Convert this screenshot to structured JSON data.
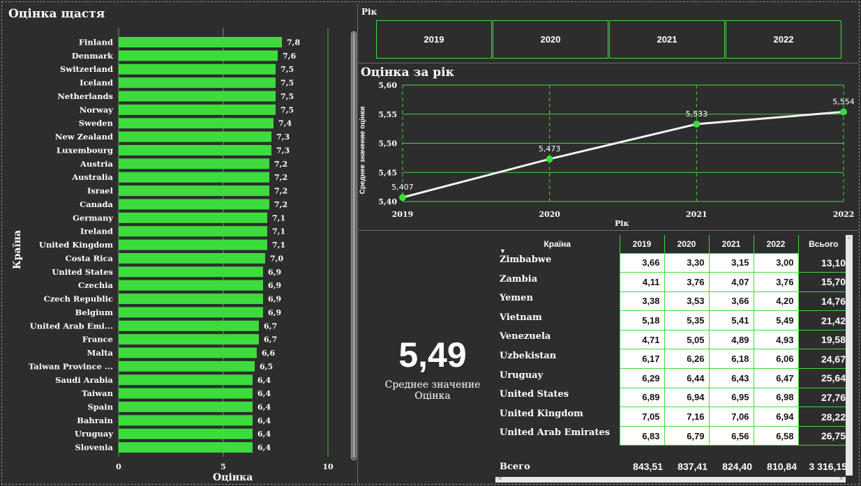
{
  "left_panel": {
    "title": "Оцінка щастя",
    "y_axis_label": "Країна",
    "x_axis_label": "Оцінка"
  },
  "slicer": {
    "title": "Рік",
    "years": [
      "2019",
      "2020",
      "2021",
      "2022"
    ]
  },
  "line_panel": {
    "title": "Оцінка за рік"
  },
  "kpi": {
    "value": "5,49",
    "label_line1": "Среднее значение",
    "label_line2": "Оцінка"
  },
  "table": {
    "headers": [
      "Країна",
      "2019",
      "2020",
      "2021",
      "2022",
      "Всього"
    ],
    "rows": [
      {
        "country": "Zimbabwe",
        "y2019": "3,66",
        "y2020": "3,30",
        "y2021": "3,15",
        "y2022": "3,00",
        "total": "13,10"
      },
      {
        "country": "Zambia",
        "y2019": "4,11",
        "y2020": "3,76",
        "y2021": "4,07",
        "y2022": "3,76",
        "total": "15,70"
      },
      {
        "country": "Yemen",
        "y2019": "3,38",
        "y2020": "3,53",
        "y2021": "3,66",
        "y2022": "4,20",
        "total": "14,76"
      },
      {
        "country": "Vietnam",
        "y2019": "5,18",
        "y2020": "5,35",
        "y2021": "5,41",
        "y2022": "5,49",
        "total": "21,42"
      },
      {
        "country": "Venezuela",
        "y2019": "4,71",
        "y2020": "5,05",
        "y2021": "4,89",
        "y2022": "4,93",
        "total": "19,58"
      },
      {
        "country": "Uzbekistan",
        "y2019": "6,17",
        "y2020": "6,26",
        "y2021": "6,18",
        "y2022": "6,06",
        "total": "24,67"
      },
      {
        "country": "Uruguay",
        "y2019": "6,29",
        "y2020": "6,44",
        "y2021": "6,43",
        "y2022": "6,47",
        "total": "25,64"
      },
      {
        "country": "United States",
        "y2019": "6,89",
        "y2020": "6,94",
        "y2021": "6,95",
        "y2022": "6,98",
        "total": "27,76"
      },
      {
        "country": "United Kingdom",
        "y2019": "7,05",
        "y2020": "7,16",
        "y2021": "7,06",
        "y2022": "6,94",
        "total": "28,22"
      },
      {
        "country": "United Arab Emirates",
        "y2019": "6,83",
        "y2020": "6,79",
        "y2021": "6,56",
        "y2022": "6,58",
        "total": "26,75"
      }
    ],
    "total_row": {
      "label": "Всего",
      "y2019": "843,51",
      "y2020": "837,41",
      "y2021": "824,40",
      "y2022": "810,84",
      "total": "3 316,15"
    }
  },
  "colors": {
    "accent_green": "#3ddc3d",
    "background": "#2d2d2d",
    "line": "#ffffff"
  },
  "chart_data": [
    {
      "type": "bar",
      "orientation": "horizontal",
      "title": "Оцінка щастя",
      "xlabel": "Оцінка",
      "ylabel": "Країна",
      "xlim": [
        0,
        10
      ],
      "x_ticks": [
        "0",
        "5",
        "10"
      ],
      "categories": [
        "Finland",
        "Denmark",
        "Switzerland",
        "Iceland",
        "Netherlands",
        "Norway",
        "Sweden",
        "New Zealand",
        "Luxembourg",
        "Austria",
        "Australia",
        "Israel",
        "Canada",
        "Germany",
        "Ireland",
        "United Kingdom",
        "Costa Rica",
        "United States",
        "Czechia",
        "Czech Republic",
        "Belgium",
        "United Arab Emi...",
        "France",
        "Malta",
        "Taiwan Province ...",
        "Saudi Arabia",
        "Taiwan",
        "Spain",
        "Bahrain",
        "Uruguay",
        "Slovenia"
      ],
      "values": [
        7.8,
        7.6,
        7.5,
        7.5,
        7.5,
        7.5,
        7.4,
        7.3,
        7.3,
        7.2,
        7.2,
        7.2,
        7.2,
        7.1,
        7.1,
        7.1,
        7.0,
        6.9,
        6.9,
        6.9,
        6.9,
        6.7,
        6.7,
        6.6,
        6.5,
        6.4,
        6.4,
        6.4,
        6.4,
        6.4,
        6.4
      ],
      "labels": [
        "7,8",
        "7,6",
        "7,5",
        "7,5",
        "7,5",
        "7,5",
        "7,4",
        "7,3",
        "7,3",
        "7,2",
        "7,2",
        "7,2",
        "7,2",
        "7,1",
        "7,1",
        "7,1",
        "7,0",
        "6,9",
        "6,9",
        "6,9",
        "6,9",
        "6,7",
        "6,7",
        "6,6",
        "6,5",
        "6,4",
        "6,4",
        "6,4",
        "6,4",
        "6,4",
        "6,4"
      ],
      "color": "#3ddc3d",
      "grid": true
    },
    {
      "type": "line",
      "title": "Оцінка за рік",
      "xlabel": "Рік",
      "ylabel": "Среднее значение оцінки",
      "x": [
        "2019",
        "2020",
        "2021",
        "2022"
      ],
      "values": [
        5.407,
        5.473,
        5.533,
        5.554
      ],
      "labels": [
        "5,407",
        "5,473",
        "5,533",
        "5,554"
      ],
      "ylim": [
        5.4,
        5.6
      ],
      "y_ticks": [
        "5,40",
        "5,45",
        "5,50",
        "5,55",
        "5,60"
      ],
      "grid": true
    }
  ]
}
